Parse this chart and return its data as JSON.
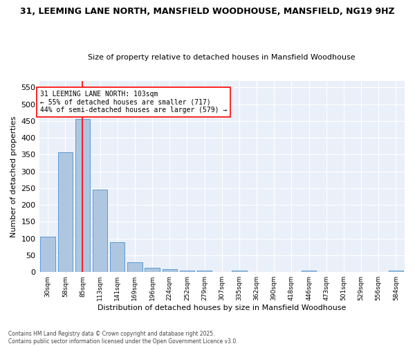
{
  "title": "31, LEEMING LANE NORTH, MANSFIELD WOODHOUSE, MANSFIELD, NG19 9HZ",
  "subtitle": "Size of property relative to detached houses in Mansfield Woodhouse",
  "xlabel": "Distribution of detached houses by size in Mansfield Woodhouse",
  "ylabel": "Number of detached properties",
  "bins": [
    "30sqm",
    "58sqm",
    "85sqm",
    "113sqm",
    "141sqm",
    "169sqm",
    "196sqm",
    "224sqm",
    "252sqm",
    "279sqm",
    "307sqm",
    "335sqm",
    "362sqm",
    "390sqm",
    "418sqm",
    "446sqm",
    "473sqm",
    "501sqm",
    "529sqm",
    "556sqm",
    "584sqm"
  ],
  "values": [
    105,
    357,
    455,
    245,
    88,
    30,
    13,
    9,
    5,
    5,
    0,
    5,
    0,
    0,
    0,
    5,
    0,
    0,
    0,
    0,
    5
  ],
  "bar_color": "#aec6e0",
  "bar_edge_color": "#5b9bd5",
  "red_line_x": 2,
  "annotation_text": "31 LEEMING LANE NORTH: 103sqm\n← 55% of detached houses are smaller (717)\n44% of semi-detached houses are larger (579) →",
  "ylim": [
    0,
    570
  ],
  "yticks": [
    0,
    50,
    100,
    150,
    200,
    250,
    300,
    350,
    400,
    450,
    500,
    550
  ],
  "background_color": "#eaf0f9",
  "grid_color": "#ffffff",
  "footer_line1": "Contains HM Land Registry data © Crown copyright and database right 2025.",
  "footer_line2": "Contains public sector information licensed under the Open Government Licence v3.0."
}
